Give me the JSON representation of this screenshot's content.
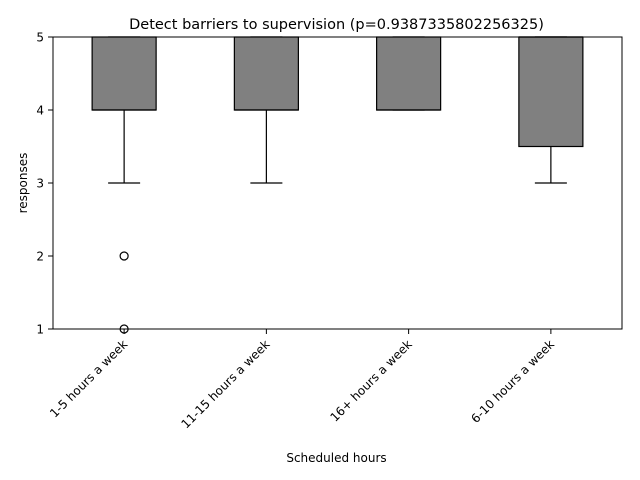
{
  "chart_data": {
    "type": "box",
    "title": "Detect barriers to supervision (p=0.9387335802256325)",
    "xlabel": "Scheduled hours",
    "ylabel": "responses",
    "ylim": [
      1,
      5
    ],
    "yticks": [
      1,
      2,
      3,
      4,
      5
    ],
    "categories": [
      "1-5 hours a week",
      "11-15 hours a week",
      "16+ hours a week",
      "6-10 hours a week"
    ],
    "boxes": [
      {
        "q1": 4,
        "median": 4,
        "q3": 5,
        "whisker_low": 3,
        "whisker_high": 5,
        "outliers": [
          2,
          1
        ]
      },
      {
        "q1": 4,
        "median": 4,
        "q3": 5,
        "whisker_low": 3,
        "whisker_high": 5,
        "outliers": []
      },
      {
        "q1": 4,
        "median": 4,
        "q3": 5,
        "whisker_low": 4,
        "whisker_high": 5,
        "outliers": []
      },
      {
        "q1": 3.5,
        "median": 5,
        "q3": 5,
        "whisker_low": 3,
        "whisker_high": 5,
        "outliers": []
      }
    ],
    "box_color": "#808080",
    "edge_color": "#000000"
  }
}
